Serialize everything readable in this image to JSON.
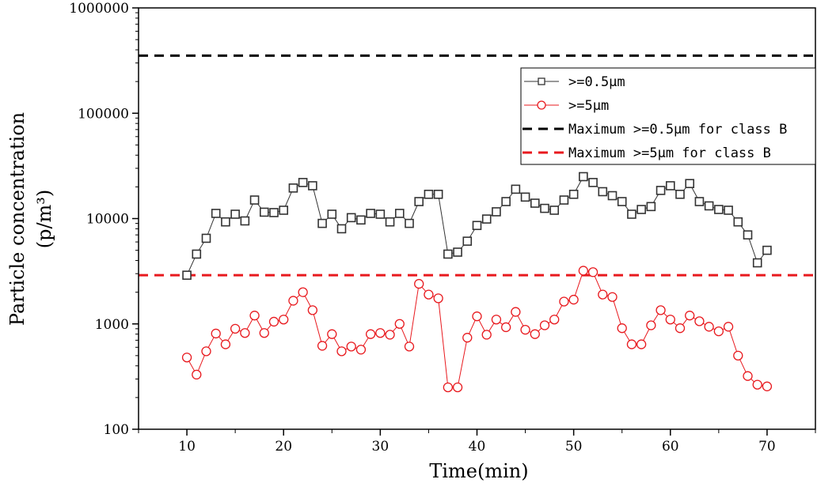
{
  "chart_data": {
    "type": "line",
    "title": "",
    "xlabel": "Time(min)",
    "ylabel_line1": "Particle concentration",
    "ylabel_line2": "(p/m³)",
    "xlim": [
      5,
      75
    ],
    "ylim": [
      100,
      1000000
    ],
    "yscale": "log",
    "x_ticks": [
      "10",
      "20",
      "30",
      "40",
      "50",
      "60",
      "70"
    ],
    "y_ticks": [
      "100",
      "1000",
      "10000",
      "100000",
      "1000000"
    ],
    "grid": false,
    "legend_position": "top-right",
    "x": [
      10,
      11,
      12,
      13,
      14,
      15,
      16,
      17,
      18,
      19,
      20,
      21,
      22,
      23,
      24,
      25,
      26,
      27,
      28,
      29,
      30,
      31,
      32,
      33,
      34,
      35,
      36,
      37,
      38,
      39,
      40,
      41,
      42,
      43,
      44,
      45,
      46,
      47,
      48,
      49,
      50,
      51,
      52,
      53,
      54,
      55,
      56,
      57,
      58,
      59,
      60,
      61,
      62,
      63,
      64,
      65,
      66,
      67,
      68,
      69,
      70
    ],
    "series": [
      {
        "name": ">=0.5µm",
        "color": "#333333",
        "marker": "square",
        "values": [
          2900,
          4600,
          6500,
          11200,
          9300,
          11000,
          9500,
          15000,
          11500,
          11400,
          12000,
          19500,
          22000,
          20500,
          9000,
          11000,
          8000,
          10200,
          9700,
          11200,
          11000,
          9300,
          11200,
          9000,
          14500,
          17000,
          17000,
          4600,
          4800,
          6100,
          8600,
          9900,
          11600,
          14500,
          19000,
          16000,
          14000,
          12500,
          12000,
          15000,
          17000,
          25000,
          22000,
          18000,
          16500,
          14500,
          11000,
          12200,
          13000,
          18500,
          20500,
          17000,
          21500,
          14500,
          13200,
          12200,
          12000,
          9300,
          7000,
          3800,
          5000
        ]
      },
      {
        "name": ">=5µm",
        "color": "#e8191e",
        "marker": "circle",
        "values": [
          480,
          330,
          550,
          810,
          640,
          900,
          820,
          1200,
          820,
          1050,
          1100,
          1660,
          2000,
          1350,
          620,
          800,
          550,
          610,
          570,
          800,
          820,
          790,
          1000,
          610,
          2400,
          1900,
          1750,
          250,
          250,
          740,
          1180,
          790,
          1100,
          930,
          1300,
          880,
          800,
          970,
          1100,
          1630,
          1700,
          3200,
          3100,
          1900,
          1800,
          910,
          640,
          640,
          970,
          1350,
          1100,
          910,
          1200,
          1060,
          940,
          850,
          940,
          500,
          320,
          265,
          255
        ]
      }
    ],
    "reference_lines": [
      {
        "name": "Maximum >=0.5µm for class B",
        "value": 352000,
        "color": "#000000"
      },
      {
        "name": "Maximum >=5µm for class B",
        "value": 2900,
        "color": "#e8191e"
      }
    ]
  }
}
